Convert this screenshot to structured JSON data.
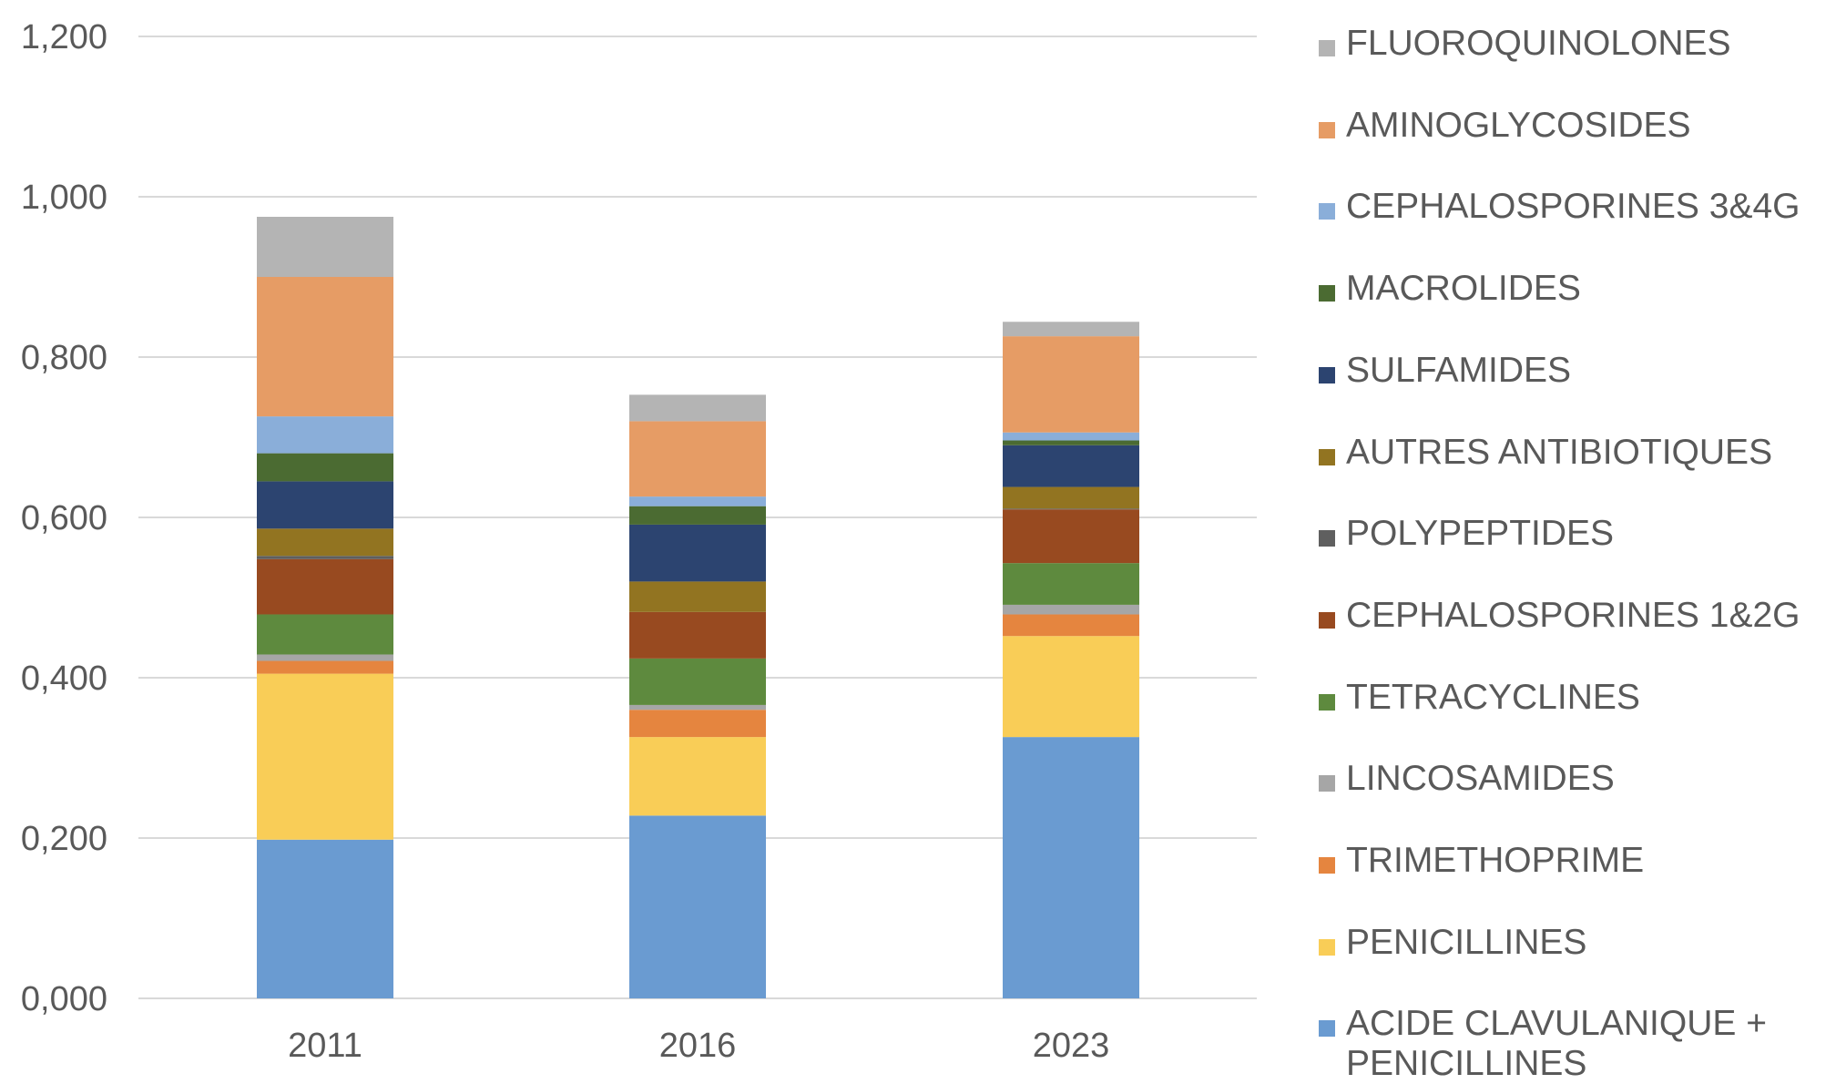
{
  "chart_data": {
    "type": "bar",
    "stacked": true,
    "categories": [
      "2011",
      "2016",
      "2023"
    ],
    "ylim": [
      0,
      1.2
    ],
    "y_ticks": [
      "0,000",
      "0,200",
      "0,400",
      "0,600",
      "0,800",
      "1,000",
      "1,200"
    ],
    "y_tick_values": [
      0,
      0.2,
      0.4,
      0.6,
      0.8,
      1.0,
      1.2
    ],
    "grid": true,
    "legend_position": "right",
    "title": "",
    "xlabel": "",
    "ylabel": "",
    "series": [
      {
        "name": "ACIDE CLAVULANIQUE + PENICILLINES",
        "color": "#6a9bd1",
        "values": [
          0.198,
          0.228,
          0.326
        ]
      },
      {
        "name": "PENICILLINES",
        "color": "#f9cd57",
        "values": [
          0.207,
          0.098,
          0.126
        ]
      },
      {
        "name": "TRIMETHOPRIME",
        "color": "#e5853f",
        "values": [
          0.016,
          0.034,
          0.027
        ]
      },
      {
        "name": "LINCOSAMIDES",
        "color": "#a6a6a6",
        "values": [
          0.008,
          0.006,
          0.012
        ]
      },
      {
        "name": "TETRACYCLINES",
        "color": "#5e8a3e",
        "values": [
          0.05,
          0.058,
          0.052
        ]
      },
      {
        "name": "CEPHALOSPORINES 1&2G",
        "color": "#984a20",
        "values": [
          0.069,
          0.058,
          0.067
        ]
      },
      {
        "name": "POLYPEPTIDES",
        "color": "#5f5f5f",
        "values": [
          0.004,
          0.0,
          0.001
        ]
      },
      {
        "name": "AUTRES ANTIBIOTIQUES",
        "color": "#927421",
        "values": [
          0.034,
          0.038,
          0.027
        ]
      },
      {
        "name": "SULFAMIDES",
        "color": "#2c4470",
        "values": [
          0.059,
          0.071,
          0.052
        ]
      },
      {
        "name": "MACROLIDES",
        "color": "#4b6b32",
        "values": [
          0.035,
          0.023,
          0.006
        ]
      },
      {
        "name": "CEPHALOSPORINES 3&4G",
        "color": "#8aaed9",
        "values": [
          0.046,
          0.012,
          0.01
        ]
      },
      {
        "name": "AMINOGLYCOSIDES",
        "color": "#e69c65",
        "values": [
          0.174,
          0.094,
          0.12
        ]
      },
      {
        "name": "FLUOROQUINOLONES",
        "color": "#b4b4b4",
        "values": [
          0.075,
          0.033,
          0.018
        ]
      }
    ]
  }
}
